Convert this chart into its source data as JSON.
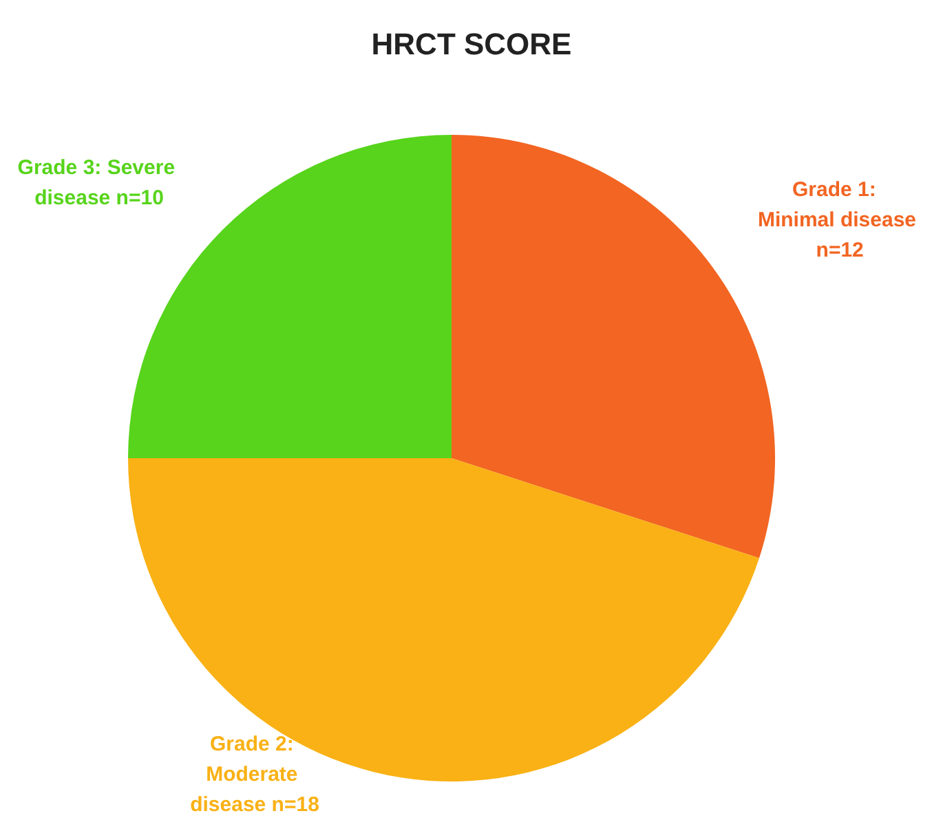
{
  "chart_data": {
    "type": "pie",
    "title": "HRCT SCORE",
    "categories": [
      "Grade 1: Minimal disease",
      "Grade 2: Moderate disease",
      "Grade 3: Severe disease"
    ],
    "values": [
      12,
      18,
      10
    ],
    "value_labels": [
      "n=12",
      "n=18",
      "n=10"
    ],
    "colors": [
      "#f26522",
      "#f9b115",
      "#57d41b"
    ],
    "legend": false
  }
}
